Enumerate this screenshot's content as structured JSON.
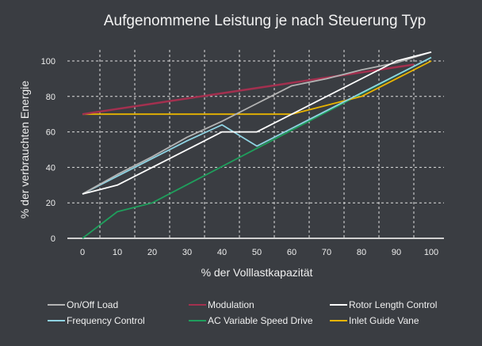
{
  "chart_data": {
    "type": "line",
    "title": "Aufgenommene Leistung je nach Steuerung Typ",
    "xlabel": "% der Volllastkapazität",
    "ylabel": "% der verbrauchten Energie",
    "xlim": [
      0,
      100
    ],
    "ylim": [
      0,
      100
    ],
    "xticks": [
      "0",
      "10",
      "20",
      "30",
      "40",
      "50",
      "60",
      "70",
      "80",
      "90",
      "100"
    ],
    "yticks": [
      "0",
      "20",
      "40",
      "60",
      "80",
      "100"
    ],
    "grid": true,
    "legend_position": "bottom",
    "series": [
      {
        "name": "On/Off Load",
        "color": "#b4b4b4",
        "x": [
          0,
          10,
          20,
          30,
          40,
          50,
          60,
          70,
          80,
          90,
          100
        ],
        "y": [
          25,
          36,
          46,
          57,
          66,
          76,
          86,
          90,
          95,
          99,
          105
        ]
      },
      {
        "name": "Modulation",
        "color": "#a3304f",
        "x": [
          0,
          95
        ],
        "y": [
          70,
          98
        ]
      },
      {
        "name": "Rotor Length Control",
        "color": "#ffffff",
        "x": [
          0,
          10,
          40,
          50,
          90,
          100
        ],
        "y": [
          25,
          30,
          60,
          60,
          100,
          105
        ]
      },
      {
        "name": "Frequency Control",
        "color": "#8fd3e3",
        "x": [
          0,
          10,
          20,
          30,
          40,
          50,
          60,
          70,
          80,
          90,
          100
        ],
        "y": [
          25,
          35,
          45,
          55,
          64,
          52,
          62,
          72,
          82,
          92,
          102
        ]
      },
      {
        "name": "AC Variable Speed Drive",
        "color": "#1f9e5c",
        "x": [
          0,
          10,
          20,
          100
        ],
        "y": [
          0,
          15,
          20,
          102
        ]
      },
      {
        "name": "Inlet Guide Vane",
        "color": "#e8b400",
        "x": [
          0,
          60,
          80,
          100
        ],
        "y": [
          70,
          70,
          80,
          100
        ]
      }
    ]
  }
}
